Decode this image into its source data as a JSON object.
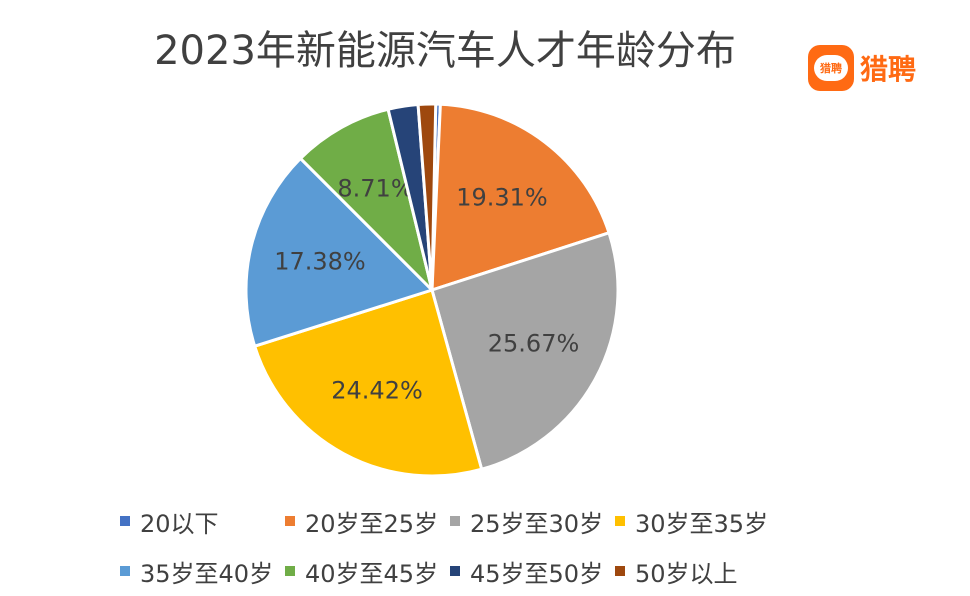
{
  "title": "2023年新能源汽车人才年龄分布",
  "logo": {
    "mark_text": "猎聘",
    "text": "猎聘",
    "color": "#ff6a13"
  },
  "chart_data": {
    "type": "pie",
    "title": "2023年新能源汽车人才年龄分布",
    "legend_position": "bottom",
    "series": [
      {
        "name": "20以下",
        "value": 0.4,
        "color": "#4472c4",
        "label": ""
      },
      {
        "name": "20岁至25岁",
        "value": 19.31,
        "color": "#ed7d31",
        "label": "19.31%"
      },
      {
        "name": "25岁至30岁",
        "value": 25.67,
        "color": "#a5a5a5",
        "label": "25.67%"
      },
      {
        "name": "30岁至35岁",
        "value": 24.42,
        "color": "#ffc000",
        "label": "24.42%"
      },
      {
        "name": "35岁至40岁",
        "value": 17.38,
        "color": "#5b9bd5",
        "label": "17.38%"
      },
      {
        "name": "40岁至45岁",
        "value": 8.71,
        "color": "#70ad47",
        "label": "8.71%"
      },
      {
        "name": "45岁至50岁",
        "value": 2.6,
        "color": "#264478",
        "label": ""
      },
      {
        "name": "50岁以上",
        "value": 1.51,
        "color": "#9e480e",
        "label": ""
      }
    ]
  }
}
